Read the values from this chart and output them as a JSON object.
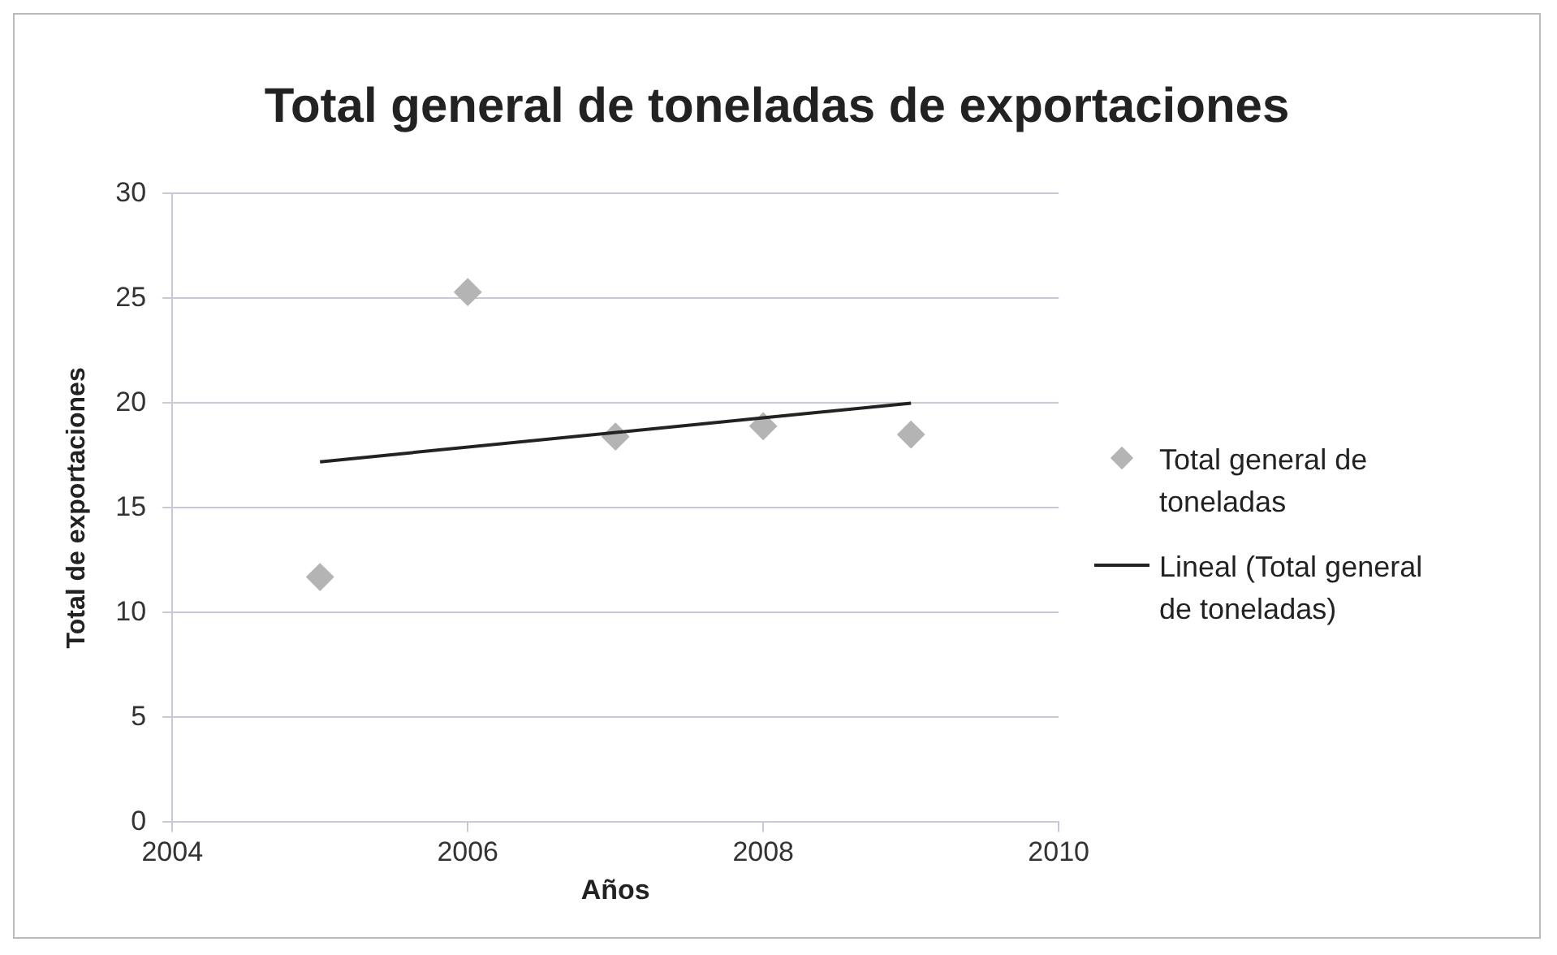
{
  "chart_data": {
    "type": "scatter",
    "title": "Total general de toneladas de exportaciones",
    "xlabel": "Años",
    "ylabel": "Total de exportaciones",
    "x": [
      2005,
      2006,
      2007,
      2008,
      2009
    ],
    "series": [
      {
        "name": "Total general de toneladas",
        "color": "#b4b4b4",
        "values": [
          11.7,
          25.3,
          18.4,
          18.9,
          18.5
        ]
      },
      {
        "name": "Lineal (Total general de toneladas)",
        "type": "line",
        "marker": "none",
        "color": "#222222",
        "x": [
          2005,
          2009
        ],
        "values": [
          17.2,
          20.0
        ]
      }
    ],
    "xlim": [
      2004,
      2010
    ],
    "xticks": [
      2004,
      2006,
      2008,
      2010
    ],
    "ylim": [
      0,
      30
    ],
    "yticks": [
      0,
      5,
      10,
      15,
      20,
      25,
      30
    ],
    "grid": "y",
    "marker": "diamond",
    "legend": "right"
  }
}
